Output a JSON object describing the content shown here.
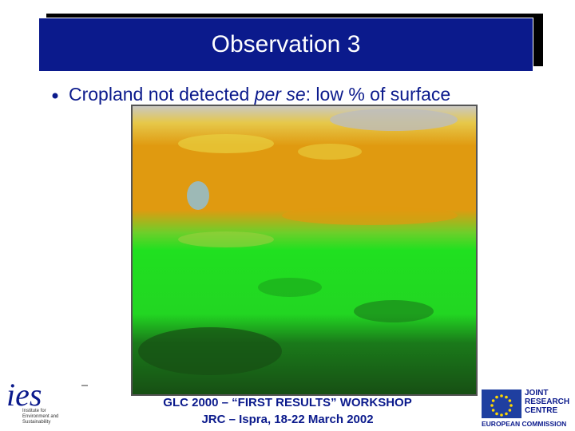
{
  "slide": {
    "title": "Observation 3",
    "bullet": {
      "prefix": "Cropland not detected ",
      "emphasis": "per se",
      "suffix": ": low % of surface"
    },
    "footer": {
      "line1": "GLC 2000 – “FIRST RESULTS” WORKSHOP",
      "line2": "JRC – Ispra, 18-22 March 2002"
    },
    "left_logo": {
      "mark": "ies",
      "caption": [
        "Institute for",
        "Environment and",
        "Sustainability"
      ]
    },
    "right_logo": {
      "name": [
        "JOINT",
        "RESEARCH",
        "CENTRE"
      ],
      "org": "EUROPEAN COMMISSION"
    }
  }
}
